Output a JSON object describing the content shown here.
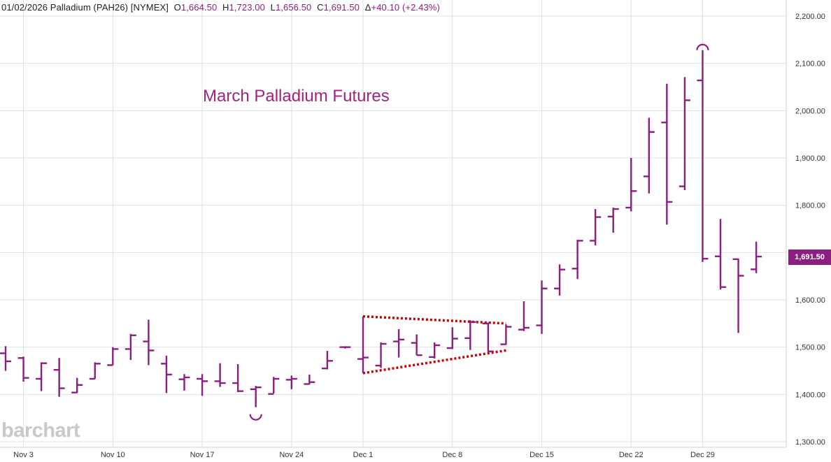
{
  "header": {
    "date": "01/02/2026",
    "symbol_text": "Palladium (PAH26) [NYMEX]",
    "open_label": "O",
    "open": "1,664.50",
    "high_label": "H",
    "high": "1,723.00",
    "low_label": "L",
    "low": "1,656.50",
    "close_label": "C",
    "close": "1,691.50",
    "change_label": "Δ",
    "change": "+40.10 (+2.43%)"
  },
  "annotation_title": "March Palladium Futures",
  "watermark": "barchart",
  "last_price_tag": "1,691.50",
  "colors": {
    "bar": "#8b1f80",
    "triangle": "#cc0000",
    "grid": "#e1e1e1",
    "tag_bg": "#8b1f80"
  },
  "chart_data": {
    "type": "ohlc",
    "grid": true,
    "y_axis_position": "right",
    "ylim": [
      1300,
      2200
    ],
    "yticks": [
      "2,200.00",
      "2,100.00",
      "2,000.00",
      "1,900.00",
      "1,800.00",
      "1,700.00",
      "1,600.00",
      "1,500.00",
      "1,400.00",
      "1,300.00"
    ],
    "ytick_values": [
      2200,
      2100,
      2000,
      1900,
      1800,
      1700,
      1600,
      1500,
      1400,
      1300
    ],
    "x_labels": [
      "Nov 3",
      "Nov 10",
      "Nov 17",
      "Nov 24",
      "Dec 1",
      "Dec 8",
      "Dec 15",
      "Dec 22",
      "Dec 29"
    ],
    "x_label_days": [
      1,
      6,
      11,
      16,
      20,
      25,
      30,
      35,
      39
    ],
    "bars": [
      {
        "date": "Oct 31",
        "o": 1487,
        "h": 1502,
        "l": 1450,
        "c": 1470
      },
      {
        "date": "Nov 3",
        "o": 1477,
        "h": 1480,
        "l": 1427,
        "c": 1435
      },
      {
        "date": "Nov 4",
        "o": 1433,
        "h": 1468,
        "l": 1407,
        "c": 1466
      },
      {
        "date": "Nov 5",
        "o": 1452,
        "h": 1477,
        "l": 1395,
        "c": 1413
      },
      {
        "date": "Nov 6",
        "o": 1404,
        "h": 1435,
        "l": 1403,
        "c": 1420
      },
      {
        "date": "Nov 7",
        "o": 1433,
        "h": 1468,
        "l": 1433,
        "c": 1465
      },
      {
        "date": "Nov 10",
        "o": 1462,
        "h": 1500,
        "l": 1462,
        "c": 1496
      },
      {
        "date": "Nov 11",
        "o": 1496,
        "h": 1528,
        "l": 1473,
        "c": 1525
      },
      {
        "date": "Nov 12",
        "o": 1512,
        "h": 1558,
        "l": 1462,
        "c": 1493
      },
      {
        "date": "Nov 13",
        "o": 1465,
        "h": 1482,
        "l": 1403,
        "c": 1442
      },
      {
        "date": "Nov 14",
        "o": 1432,
        "h": 1443,
        "l": 1408,
        "c": 1436
      },
      {
        "date": "Nov 17",
        "o": 1433,
        "h": 1443,
        "l": 1397,
        "c": 1428
      },
      {
        "date": "Nov 18",
        "o": 1428,
        "h": 1466,
        "l": 1416,
        "c": 1424
      },
      {
        "date": "Nov 19",
        "o": 1424,
        "h": 1464,
        "l": 1405,
        "c": 1407
      },
      {
        "date": "Nov 20",
        "o": 1411,
        "h": 1418,
        "l": 1373,
        "c": 1415
      },
      {
        "date": "Nov 21",
        "o": 1401,
        "h": 1437,
        "l": 1402,
        "c": 1433
      },
      {
        "date": "Nov 24",
        "o": 1431,
        "h": 1440,
        "l": 1411,
        "c": 1433
      },
      {
        "date": "Nov 25",
        "o": 1422,
        "h": 1442,
        "l": 1421,
        "c": 1426
      },
      {
        "date": "Nov 26",
        "o": 1455,
        "h": 1492,
        "l": 1453,
        "c": 1471
      },
      {
        "date": "Nov 28",
        "o": 1500,
        "h": 1502,
        "l": 1497,
        "c": 1500
      },
      {
        "date": "Dec 1",
        "o": 1475,
        "h": 1565,
        "l": 1445,
        "c": 1478
      },
      {
        "date": "Dec 2",
        "o": 1461,
        "h": 1510,
        "l": 1456,
        "c": 1507
      },
      {
        "date": "Dec 3",
        "o": 1512,
        "h": 1538,
        "l": 1478,
        "c": 1516
      },
      {
        "date": "Dec 4",
        "o": 1509,
        "h": 1527,
        "l": 1483,
        "c": 1483
      },
      {
        "date": "Dec 5",
        "o": 1479,
        "h": 1510,
        "l": 1476,
        "c": 1504
      },
      {
        "date": "Dec 8",
        "o": 1498,
        "h": 1542,
        "l": 1496,
        "c": 1518
      },
      {
        "date": "Dec 9",
        "o": 1519,
        "h": 1557,
        "l": 1494,
        "c": 1553
      },
      {
        "date": "Dec 10",
        "o": 1550,
        "h": 1552,
        "l": 1490,
        "c": 1491
      },
      {
        "date": "Dec 11",
        "o": 1506,
        "h": 1548,
        "l": 1505,
        "c": 1543
      },
      {
        "date": "Dec 12",
        "o": 1537,
        "h": 1597,
        "l": 1534,
        "c": 1541
      },
      {
        "date": "Dec 15",
        "o": 1546,
        "h": 1641,
        "l": 1528,
        "c": 1624
      },
      {
        "date": "Dec 16",
        "o": 1624,
        "h": 1675,
        "l": 1609,
        "c": 1664
      },
      {
        "date": "Dec 17",
        "o": 1666,
        "h": 1727,
        "l": 1644,
        "c": 1725
      },
      {
        "date": "Dec 18",
        "o": 1725,
        "h": 1792,
        "l": 1715,
        "c": 1775
      },
      {
        "date": "Dec 19",
        "o": 1776,
        "h": 1795,
        "l": 1742,
        "c": 1792
      },
      {
        "date": "Dec 22",
        "o": 1795,
        "h": 1900,
        "l": 1787,
        "c": 1830
      },
      {
        "date": "Dec 23",
        "o": 1861,
        "h": 1985,
        "l": 1825,
        "c": 1955
      },
      {
        "date": "Dec 24",
        "o": 1975,
        "h": 2057,
        "l": 1759,
        "c": 1807
      },
      {
        "date": "Dec 26",
        "o": 1840,
        "h": 2071,
        "l": 1832,
        "c": 2022
      },
      {
        "date": "Dec 29",
        "o": 2064,
        "h": 2128,
        "l": 1680,
        "c": 1687
      },
      {
        "date": "Dec 30",
        "o": 1692,
        "h": 1771,
        "l": 1622,
        "c": 1627
      },
      {
        "date": "Dec 31",
        "o": 1686,
        "h": 1687,
        "l": 1530,
        "c": 1651
      },
      {
        "date": "Jan 2",
        "o": 1664.5,
        "h": 1723,
        "l": 1656.5,
        "c": 1691.5
      }
    ]
  }
}
